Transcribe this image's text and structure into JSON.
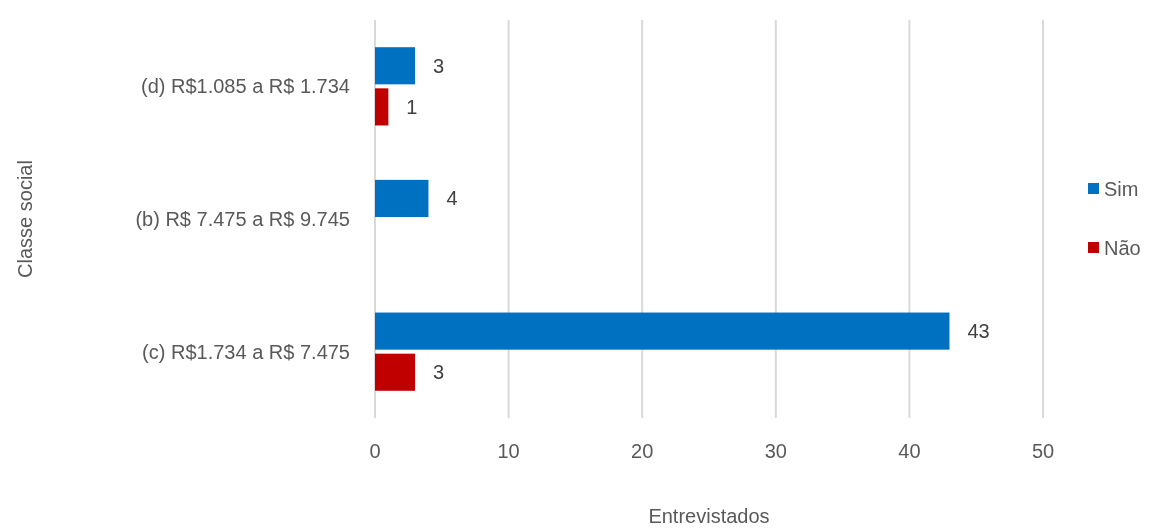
{
  "chart_data": {
    "type": "bar",
    "orientation": "horizontal",
    "xlabel": "Entrevistados",
    "ylabel": "Classe social",
    "categories": [
      "(d) R$1.085 a R$ 1.734",
      "(b) R$ 7.475 a R$ 9.745",
      "(c) R$1.734 a R$ 7.475"
    ],
    "series": [
      {
        "name": "Sim",
        "color": "#0070c0",
        "values": [
          3,
          4,
          43
        ]
      },
      {
        "name": "Não",
        "color": "#c00000",
        "values": [
          1,
          null,
          3
        ]
      }
    ],
    "xlim": [
      0,
      50
    ],
    "xticks": [
      0,
      10,
      20,
      30,
      40,
      50
    ],
    "grid": "x",
    "legend": "right",
    "data_labels": true
  }
}
